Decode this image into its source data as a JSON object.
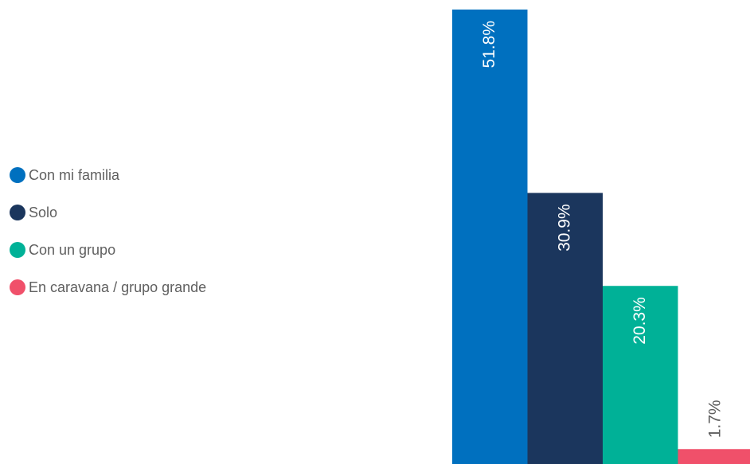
{
  "chart_data": {
    "type": "bar",
    "categories": [
      "Con mi familia",
      "Solo",
      "Con un grupo",
      "En caravana / grupo grande"
    ],
    "values": [
      51.8,
      30.9,
      20.3,
      1.7
    ],
    "value_labels": [
      "51.8%",
      "30.9%",
      "20.3%",
      "1.7%"
    ],
    "colors": [
      "#0070bf",
      "#1b365d",
      "#00b197",
      "#f0506a"
    ],
    "ylim": [
      0,
      51.8
    ],
    "grid": false,
    "legend_position": "left",
    "title": "",
    "xlabel": "",
    "ylabel": ""
  },
  "legend": {
    "items": [
      {
        "label": "Con mi familia",
        "color": "#0070bf"
      },
      {
        "label": "Solo",
        "color": "#1b365d"
      },
      {
        "label": "Con un grupo",
        "color": "#00b197"
      },
      {
        "label": "En caravana / grupo grande",
        "color": "#f0506a"
      }
    ]
  }
}
